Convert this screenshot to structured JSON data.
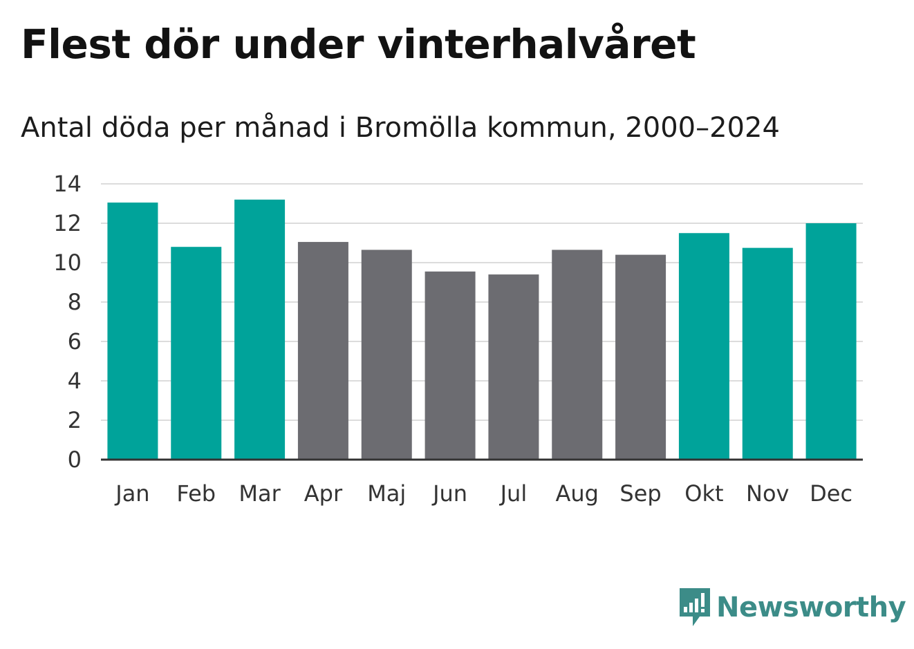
{
  "title": "Flest dör under vinterhalvåret",
  "subtitle": "Antal döda per månad i Bromölla kommun, 2000–2024",
  "brand": {
    "name": "Newsworthy",
    "color": "#3c8c88",
    "icon": "chart-bubble-icon"
  },
  "colors": {
    "winter": "#00a39a",
    "summer": "#6c6c71",
    "grid": "#dcdcdc",
    "axis": "#333333",
    "text": "#333333"
  },
  "chart_data": {
    "type": "bar",
    "title": "Flest dör under vinterhalvåret",
    "subtitle": "Antal döda per månad i Bromölla kommun, 2000–2024",
    "xlabel": "",
    "ylabel": "",
    "ylim": [
      0,
      14
    ],
    "yticks": [
      0,
      2,
      4,
      6,
      8,
      10,
      12,
      14
    ],
    "grid": true,
    "categories": [
      "Jan",
      "Feb",
      "Mar",
      "Apr",
      "Maj",
      "Jun",
      "Jul",
      "Aug",
      "Sep",
      "Okt",
      "Nov",
      "Dec"
    ],
    "values": [
      13.05,
      10.8,
      13.2,
      11.05,
      10.65,
      9.55,
      9.4,
      10.65,
      10.4,
      11.5,
      10.75,
      12.0
    ],
    "highlight": [
      true,
      true,
      true,
      false,
      false,
      false,
      false,
      false,
      false,
      true,
      true,
      true
    ]
  }
}
